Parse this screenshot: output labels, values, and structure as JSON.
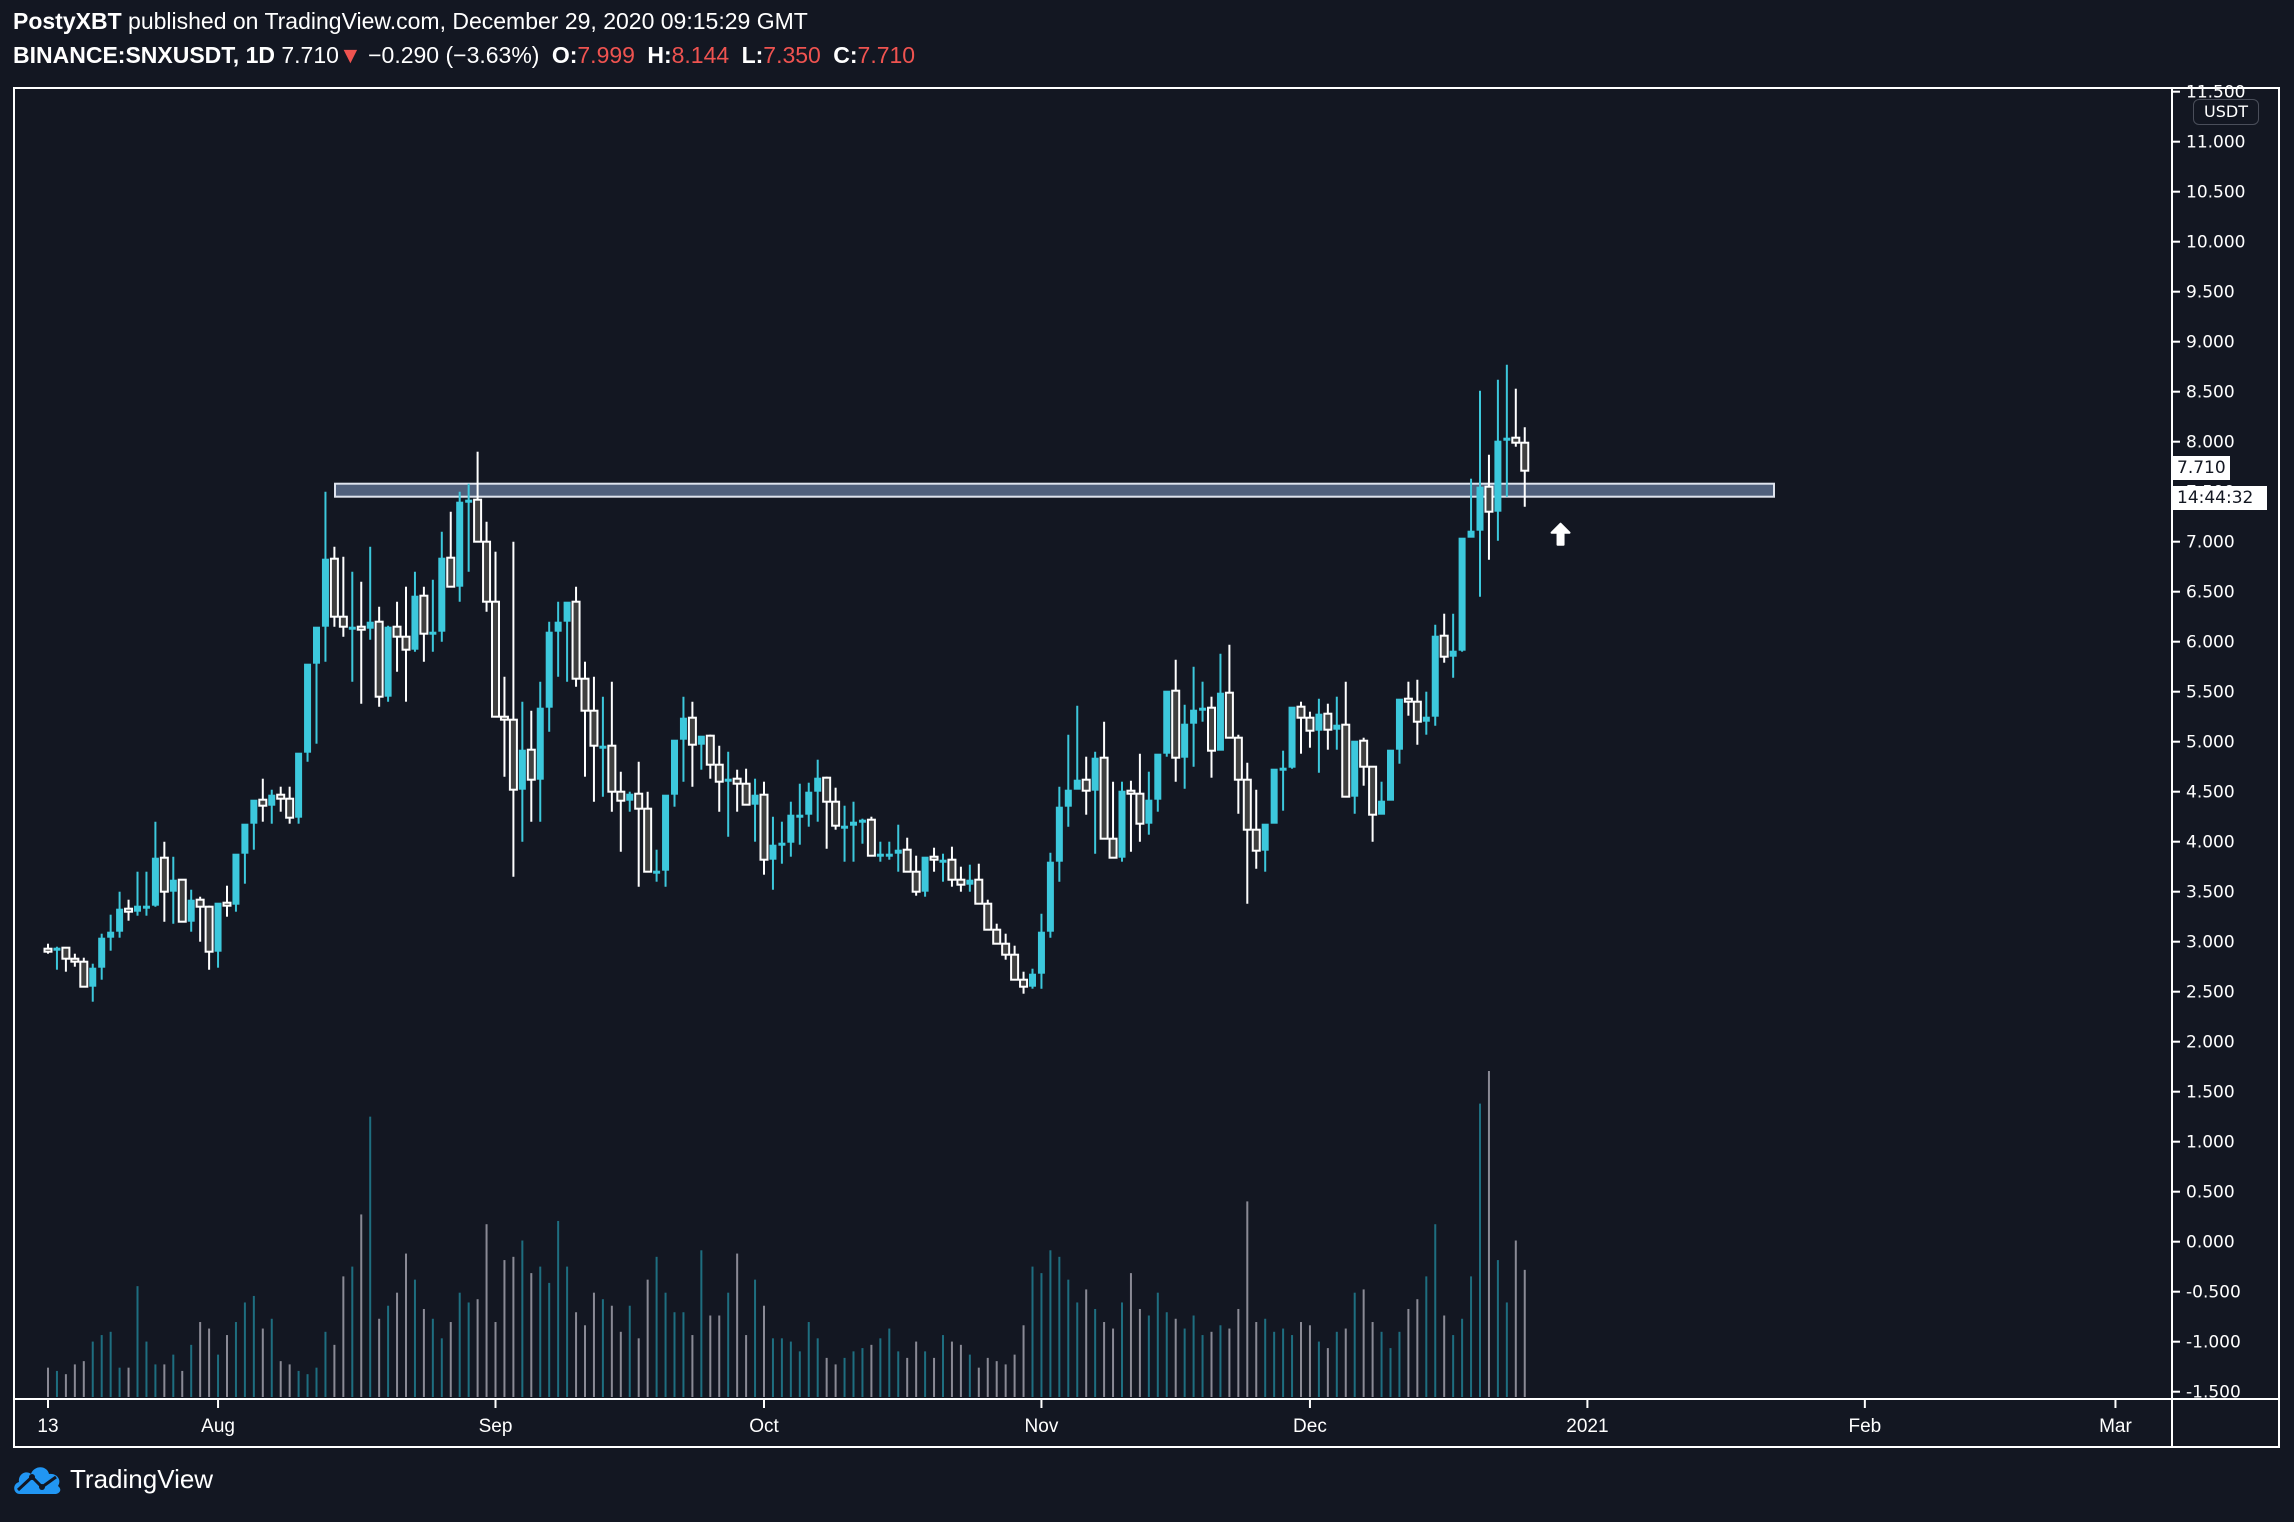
{
  "header": {
    "author": "PostyXBT",
    "published_text": " published on TradingView.com, December 29, 2020 09:15:29 GMT",
    "symbol": "BINANCE:SNXUSDT, 1D",
    "last_price": "7.710",
    "change_arrow": "▼",
    "change": "−0.290 (−3.63%)",
    "open_label": "O:",
    "open": "7.999",
    "high_label": "H:",
    "high": "8.144",
    "low_label": "L:",
    "low": "7.350",
    "close_label": "C:",
    "close": "7.710"
  },
  "price_axis": {
    "currency_badge": "USDT",
    "current_price_tag": "7.710",
    "countdown_tag": "14:44:32"
  },
  "footer": {
    "brand": "TradingView"
  },
  "colors": {
    "background": "#131722",
    "bull": "#3cc8dc",
    "bear_body": "#404040",
    "bear_outline": "#ffffff",
    "vol_bull": "#1e6e80",
    "vol_bear": "#8a8a95",
    "zone_fill": "#5c6d8c",
    "change_red": "#ef5350"
  },
  "chart_data": {
    "type": "candlestick",
    "title": "BINANCE:SNXUSDT, 1D",
    "start_date": "2020-07-13",
    "end_date": "2020-12-29",
    "ylabel": "USDT",
    "ylim": [
      -1.6,
      11.6
    ],
    "y_ticks": [
      "11.500",
      "11.000",
      "10.500",
      "10.000",
      "9.500",
      "9.000",
      "8.500",
      "8.000",
      "7.500",
      "7.000",
      "6.500",
      "6.000",
      "5.500",
      "5.000",
      "4.500",
      "4.000",
      "3.500",
      "3.000",
      "2.500",
      "2.000",
      "1.500",
      "1.000",
      "0.500",
      "0.000",
      "-0.500",
      "-1.000",
      "-1.500"
    ],
    "y_tick_values": [
      11.5,
      11,
      10.5,
      10,
      9.5,
      9,
      8.5,
      8,
      7.5,
      7,
      6.5,
      6,
      5.5,
      5,
      4.5,
      4,
      3.5,
      3,
      2.5,
      2,
      1.5,
      1,
      0.5,
      0,
      -0.5,
      -1,
      -1.5
    ],
    "x_ticks": [
      {
        "label": "13",
        "day": 0
      },
      {
        "label": "Aug",
        "day": 19
      },
      {
        "label": "Sep",
        "day": 50
      },
      {
        "label": "Oct",
        "day": 80
      },
      {
        "label": "Nov",
        "day": 111
      },
      {
        "label": "Dec",
        "day": 141
      },
      {
        "label": "2021",
        "day": 172
      },
      {
        "label": "Feb",
        "day": 203
      },
      {
        "label": "Mar",
        "day": 231
      }
    ],
    "resistance_zone": {
      "price_low": 7.45,
      "price_high": 7.58,
      "start_day": 32,
      "end_day": 193
    },
    "annotation": {
      "type": "arrow-up",
      "day": 169,
      "price": 7.1
    },
    "ohlc": [
      [
        2.93,
        2.98,
        2.88,
        2.91
      ],
      [
        2.91,
        2.95,
        2.72,
        2.94
      ],
      [
        2.94,
        2.94,
        2.7,
        2.83
      ],
      [
        2.83,
        2.88,
        2.75,
        2.8
      ],
      [
        2.8,
        2.84,
        2.68,
        2.55
      ],
      [
        2.55,
        2.78,
        2.4,
        2.74
      ],
      [
        2.74,
        3.08,
        2.62,
        3.04
      ],
      [
        3.04,
        3.27,
        2.91,
        3.1
      ],
      [
        3.1,
        3.5,
        3.04,
        3.33
      ],
      [
        3.33,
        3.42,
        3.21,
        3.3
      ],
      [
        3.3,
        3.7,
        3.26,
        3.36
      ],
      [
        3.36,
        3.7,
        3.26,
        3.36
      ],
      [
        3.36,
        4.2,
        3.35,
        3.84
      ],
      [
        3.84,
        4.0,
        3.2,
        3.5
      ],
      [
        3.5,
        3.85,
        3.18,
        3.62
      ],
      [
        3.62,
        3.62,
        3.25,
        3.2
      ],
      [
        3.2,
        3.52,
        3.1,
        3.42
      ],
      [
        3.42,
        3.45,
        3.0,
        3.35
      ],
      [
        3.35,
        3.36,
        2.72,
        2.9
      ],
      [
        2.9,
        3.2,
        2.74,
        3.39
      ],
      [
        3.39,
        3.56,
        3.25,
        3.37
      ],
      [
        3.37,
        3.8,
        3.3,
        3.88
      ],
      [
        3.88,
        4.05,
        3.58,
        4.18
      ],
      [
        4.18,
        4.4,
        3.92,
        4.42
      ],
      [
        4.42,
        4.63,
        4.2,
        4.36
      ],
      [
        4.36,
        4.52,
        4.18,
        4.47
      ],
      [
        4.47,
        4.55,
        4.3,
        4.43
      ],
      [
        4.43,
        4.55,
        4.18,
        4.24
      ],
      [
        4.24,
        4.6,
        4.18,
        4.89
      ],
      [
        4.89,
        5.58,
        4.8,
        5.78
      ],
      [
        5.78,
        5.8,
        4.98,
        6.15
      ],
      [
        6.15,
        7.5,
        5.8,
        6.83
      ],
      [
        6.83,
        6.95,
        6.15,
        6.25
      ],
      [
        6.25,
        6.85,
        6.05,
        6.15
      ],
      [
        6.15,
        6.7,
        5.6,
        6.15
      ],
      [
        6.15,
        6.6,
        5.38,
        6.13
      ],
      [
        6.13,
        6.95,
        6.02,
        6.2
      ],
      [
        6.2,
        6.35,
        5.35,
        5.45
      ],
      [
        5.45,
        6.16,
        5.4,
        6.15
      ],
      [
        6.15,
        6.4,
        5.7,
        6.05
      ],
      [
        6.05,
        6.55,
        5.4,
        5.92
      ],
      [
        5.92,
        6.7,
        5.9,
        6.46
      ],
      [
        6.46,
        6.55,
        5.8,
        6.08
      ],
      [
        6.08,
        6.62,
        5.9,
        6.1
      ],
      [
        6.1,
        7.1,
        6.0,
        6.84
      ],
      [
        6.84,
        7.3,
        6.6,
        6.55
      ],
      [
        6.55,
        7.5,
        6.4,
        7.4
      ],
      [
        7.4,
        7.58,
        6.7,
        7.42
      ],
      [
        7.42,
        7.9,
        7.35,
        7.0
      ],
      [
        7.0,
        7.2,
        6.3,
        6.4
      ],
      [
        6.4,
        6.9,
        5.9,
        5.25
      ],
      [
        5.25,
        5.65,
        4.65,
        5.22
      ],
      [
        5.22,
        7.0,
        3.65,
        4.52
      ],
      [
        4.52,
        5.4,
        4.0,
        4.92
      ],
      [
        4.92,
        5.31,
        4.2,
        4.62
      ],
      [
        4.62,
        5.6,
        4.2,
        5.34
      ],
      [
        5.34,
        6.2,
        5.1,
        6.1
      ],
      [
        6.1,
        6.4,
        5.65,
        6.2
      ],
      [
        6.2,
        6.35,
        5.6,
        6.4
      ],
      [
        6.4,
        6.55,
        5.55,
        5.63
      ],
      [
        5.63,
        5.8,
        4.65,
        5.31
      ],
      [
        5.31,
        5.65,
        4.4,
        4.96
      ],
      [
        4.96,
        5.45,
        4.45,
        4.96
      ],
      [
        4.96,
        5.6,
        4.3,
        4.5
      ],
      [
        4.5,
        4.7,
        3.9,
        4.41
      ],
      [
        4.41,
        4.5,
        4.3,
        4.48
      ],
      [
        4.48,
        4.8,
        3.55,
        4.33
      ],
      [
        4.33,
        4.5,
        3.7,
        3.7
      ],
      [
        3.7,
        3.92,
        3.6,
        3.71
      ],
      [
        3.71,
        4.4,
        3.55,
        4.47
      ],
      [
        4.47,
        5.0,
        4.35,
        5.02
      ],
      [
        5.02,
        5.45,
        4.6,
        5.24
      ],
      [
        5.24,
        5.4,
        4.55,
        4.97
      ],
      [
        4.97,
        5.05,
        4.72,
        5.06
      ],
      [
        5.06,
        5.07,
        4.63,
        4.77
      ],
      [
        4.77,
        4.96,
        4.3,
        4.6
      ],
      [
        4.6,
        4.9,
        4.05,
        4.63
      ],
      [
        4.63,
        4.72,
        4.3,
        4.58
      ],
      [
        4.58,
        4.73,
        4.5,
        4.37
      ],
      [
        4.37,
        4.63,
        4.0,
        4.47
      ],
      [
        4.47,
        4.6,
        3.67,
        3.82
      ],
      [
        3.82,
        4.25,
        3.52,
        3.97
      ],
      [
        3.97,
        4.2,
        3.78,
        3.99
      ],
      [
        3.99,
        4.4,
        3.85,
        4.27
      ],
      [
        4.27,
        4.58,
        3.97,
        4.27
      ],
      [
        4.27,
        4.59,
        4.15,
        4.5
      ],
      [
        4.5,
        4.82,
        4.2,
        4.64
      ],
      [
        4.64,
        4.65,
        3.93,
        4.4
      ],
      [
        4.4,
        4.54,
        4.12,
        4.16
      ],
      [
        4.16,
        4.36,
        3.8,
        4.16
      ],
      [
        4.16,
        4.4,
        3.8,
        4.2
      ],
      [
        4.2,
        4.23,
        3.98,
        4.22
      ],
      [
        4.22,
        4.25,
        4.07,
        3.86
      ],
      [
        3.86,
        4.0,
        3.8,
        3.88
      ],
      [
        3.88,
        4.0,
        3.82,
        3.88
      ],
      [
        3.88,
        4.17,
        3.7,
        3.92
      ],
      [
        3.92,
        4.04,
        3.78,
        3.7
      ],
      [
        3.7,
        3.86,
        3.46,
        3.5
      ],
      [
        3.5,
        3.8,
        3.45,
        3.85
      ],
      [
        3.85,
        3.94,
        3.7,
        3.82
      ],
      [
        3.82,
        3.88,
        3.6,
        3.82
      ],
      [
        3.82,
        3.95,
        3.55,
        3.62
      ],
      [
        3.62,
        3.75,
        3.5,
        3.57
      ],
      [
        3.57,
        3.77,
        3.5,
        3.62
      ],
      [
        3.62,
        3.78,
        3.5,
        3.38
      ],
      [
        3.38,
        3.42,
        3.2,
        3.12
      ],
      [
        3.12,
        3.18,
        2.98,
        2.98
      ],
      [
        2.98,
        3.08,
        2.82,
        2.87
      ],
      [
        2.87,
        2.96,
        2.68,
        2.62
      ],
      [
        2.62,
        2.7,
        2.48,
        2.55
      ],
      [
        2.55,
        2.73,
        2.53,
        2.68
      ],
      [
        2.68,
        3.28,
        2.53,
        3.1
      ],
      [
        3.1,
        3.89,
        3.04,
        3.8
      ],
      [
        3.8,
        4.55,
        3.6,
        4.35
      ],
      [
        4.35,
        5.07,
        4.15,
        4.52
      ],
      [
        4.52,
        5.36,
        4.55,
        4.62
      ],
      [
        4.62,
        4.85,
        4.27,
        4.51
      ],
      [
        4.51,
        4.9,
        3.88,
        4.84
      ],
      [
        4.84,
        5.2,
        4.11,
        4.03
      ],
      [
        4.03,
        4.6,
        3.9,
        3.84
      ],
      [
        3.84,
        4.6,
        3.8,
        4.51
      ],
      [
        4.51,
        4.61,
        3.9,
        4.48
      ],
      [
        4.48,
        4.88,
        4.0,
        4.18
      ],
      [
        4.18,
        4.7,
        4.07,
        4.42
      ],
      [
        4.42,
        4.8,
        4.3,
        4.88
      ],
      [
        4.88,
        5.43,
        4.85,
        5.51
      ],
      [
        5.51,
        5.82,
        4.6,
        4.84
      ],
      [
        4.84,
        5.37,
        4.53,
        5.18
      ],
      [
        5.18,
        5.75,
        4.75,
        5.32
      ],
      [
        5.32,
        5.6,
        5.2,
        5.34
      ],
      [
        5.34,
        5.45,
        4.64,
        4.91
      ],
      [
        4.91,
        5.88,
        5.01,
        5.49
      ],
      [
        5.49,
        5.97,
        5.05,
        5.04
      ],
      [
        5.04,
        5.07,
        4.28,
        4.62
      ],
      [
        4.62,
        4.79,
        3.38,
        4.12
      ],
      [
        4.12,
        4.52,
        3.73,
        3.91
      ],
      [
        3.91,
        4.17,
        3.7,
        4.18
      ],
      [
        4.18,
        4.42,
        4.2,
        4.73
      ],
      [
        4.73,
        4.91,
        4.31,
        4.74
      ],
      [
        4.74,
        5.27,
        4.73,
        5.35
      ],
      [
        5.35,
        5.4,
        4.88,
        5.24
      ],
      [
        5.24,
        5.3,
        4.94,
        5.11
      ],
      [
        5.11,
        5.43,
        4.69,
        5.28
      ],
      [
        5.28,
        5.38,
        4.92,
        5.12
      ],
      [
        5.12,
        5.45,
        4.92,
        5.17
      ],
      [
        5.17,
        5.6,
        4.92,
        4.45
      ],
      [
        4.45,
        4.95,
        4.28,
        5.01
      ],
      [
        5.01,
        5.04,
        4.56,
        4.75
      ],
      [
        4.75,
        4.73,
        4.0,
        4.27
      ],
      [
        4.27,
        4.6,
        4.28,
        4.41
      ],
      [
        4.41,
        4.9,
        4.56,
        4.92
      ],
      [
        4.92,
        5.41,
        4.78,
        5.43
      ],
      [
        5.43,
        5.6,
        5.26,
        5.4
      ],
      [
        5.4,
        5.62,
        4.97,
        5.2
      ],
      [
        5.2,
        5.5,
        5.07,
        5.25
      ],
      [
        5.25,
        6.17,
        5.16,
        6.06
      ],
      [
        6.06,
        6.28,
        5.79,
        5.85
      ],
      [
        5.85,
        6.28,
        5.64,
        5.91
      ],
      [
        5.91,
        6.2,
        5.9,
        7.04
      ],
      [
        7.04,
        7.63,
        7.08,
        7.11
      ],
      [
        7.11,
        8.51,
        6.45,
        7.55
      ],
      [
        7.55,
        7.87,
        6.82,
        7.3
      ],
      [
        7.3,
        8.62,
        7.01,
        8.01
      ],
      [
        8.01,
        8.77,
        7.45,
        8.04
      ],
      [
        8.04,
        8.53,
        7.95,
        7.99
      ],
      [
        7.99,
        8.144,
        7.35,
        7.71
      ]
    ],
    "volume": [
      0.09,
      0.08,
      0.07,
      0.1,
      0.11,
      0.17,
      0.19,
      0.2,
      0.09,
      0.09,
      0.34,
      0.17,
      0.1,
      0.1,
      0.13,
      0.08,
      0.16,
      0.23,
      0.21,
      0.13,
      0.19,
      0.23,
      0.29,
      0.31,
      0.21,
      0.24,
      0.11,
      0.1,
      0.08,
      0.07,
      0.09,
      0.2,
      0.16,
      0.37,
      0.4,
      0.56,
      0.86,
      0.24,
      0.28,
      0.32,
      0.44,
      0.36,
      0.27,
      0.24,
      0.18,
      0.23,
      0.32,
      0.29,
      0.3,
      0.53,
      0.23,
      0.42,
      0.43,
      0.48,
      0.38,
      0.4,
      0.35,
      0.54,
      0.4,
      0.26,
      0.22,
      0.32,
      0.3,
      0.28,
      0.2,
      0.28,
      0.18,
      0.36,
      0.43,
      0.32,
      0.26,
      0.26,
      0.19,
      0.45,
      0.25,
      0.25,
      0.32,
      0.44,
      0.19,
      0.36,
      0.28,
      0.18,
      0.18,
      0.17,
      0.14,
      0.23,
      0.18,
      0.12,
      0.1,
      0.12,
      0.14,
      0.15,
      0.16,
      0.18,
      0.21,
      0.14,
      0.12,
      0.17,
      0.14,
      0.12,
      0.19,
      0.17,
      0.16,
      0.13,
      0.09,
      0.12,
      0.11,
      0.1,
      0.13,
      0.22,
      0.4,
      0.38,
      0.45,
      0.43,
      0.36,
      0.29,
      0.33,
      0.27,
      0.23,
      0.21,
      0.29,
      0.38,
      0.27,
      0.25,
      0.32,
      0.26,
      0.24,
      0.21,
      0.25,
      0.19,
      0.2,
      0.22,
      0.21,
      0.27,
      0.6,
      0.23,
      0.24,
      0.2,
      0.21,
      0.19,
      0.23,
      0.22,
      0.17,
      0.15,
      0.2,
      0.21,
      0.32,
      0.33,
      0.23,
      0.2,
      0.15,
      0.2,
      0.27,
      0.3,
      0.37,
      0.53,
      0.25,
      0.19,
      0.24,
      0.37,
      0.9,
      1.0,
      0.42,
      0.29,
      0.48,
      0.39,
      0.12
    ]
  }
}
